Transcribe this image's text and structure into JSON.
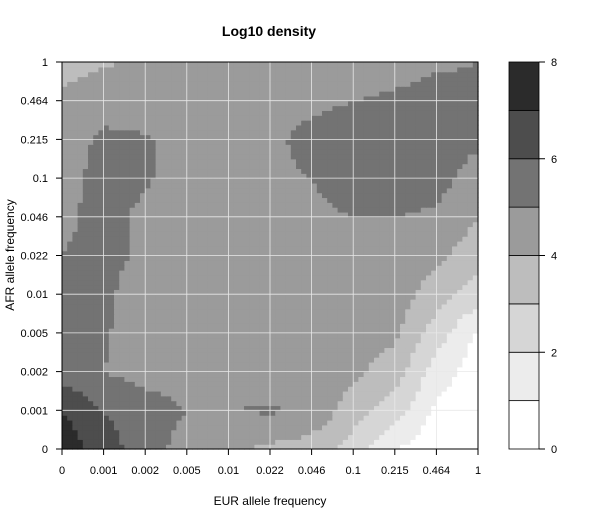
{
  "chart_data": {
    "type": "heatmap",
    "title": "Log10 density",
    "xlabel": "EUR allele frequency",
    "ylabel": "AFR allele frequency",
    "x_ticks": [
      "0",
      "0.001",
      "0.002",
      "0.005",
      "0.01",
      "0.022",
      "0.046",
      "0.1",
      "0.215",
      "0.464",
      "1"
    ],
    "y_ticks": [
      "0",
      "0.001",
      "0.002",
      "0.005",
      "0.01",
      "0.022",
      "0.046",
      "0.1",
      "0.215",
      "0.464",
      "1"
    ],
    "grid": true,
    "legend": {
      "placement": "right",
      "range": [
        0,
        8
      ],
      "tick_labels": [
        "0",
        "2",
        "4",
        "6",
        "8"
      ],
      "levels": [
        {
          "from": 0,
          "to": 1,
          "color": "#ffffff"
        },
        {
          "from": 1,
          "to": 2,
          "color": "#ececec"
        },
        {
          "from": 2,
          "to": 3,
          "color": "#d6d6d6"
        },
        {
          "from": 3,
          "to": 4,
          "color": "#bdbdbd"
        },
        {
          "from": 4,
          "to": 5,
          "color": "#9b9b9b"
        },
        {
          "from": 5,
          "to": 6,
          "color": "#737373"
        },
        {
          "from": 6,
          "to": 7,
          "color": "#4d4d4d"
        },
        {
          "from": 7,
          "to": 8,
          "color": "#2b2b2b"
        }
      ]
    },
    "grid_values": [
      [
        7.8,
        6.4,
        5.6,
        4.5,
        4.2,
        3.8,
        3.5,
        2.5,
        1.0,
        0.3,
        0.1
      ],
      [
        7.0,
        6.0,
        5.5,
        5.0,
        5.0,
        5.1,
        4.8,
        3.5,
        2.5,
        0.8,
        0.3
      ],
      [
        5.5,
        5.0,
        4.6,
        4.5,
        4.5,
        4.4,
        4.4,
        4.2,
        3.5,
        1.5,
        0.5
      ],
      [
        5.3,
        5.1,
        4.5,
        4.3,
        4.3,
        4.4,
        4.4,
        4.4,
        4.2,
        2.5,
        0.8
      ],
      [
        5.3,
        5.2,
        4.5,
        4.3,
        4.4,
        4.4,
        4.5,
        4.5,
        4.5,
        3.5,
        2.5
      ],
      [
        5.0,
        5.3,
        4.8,
        4.5,
        4.5,
        4.5,
        4.5,
        4.6,
        4.7,
        4.2,
        3.5
      ],
      [
        4.8,
        5.3,
        4.8,
        4.5,
        4.5,
        4.6,
        4.8,
        5.0,
        5.0,
        4.8,
        4.0
      ],
      [
        4.7,
        5.3,
        5.1,
        4.6,
        4.6,
        4.8,
        5.0,
        5.5,
        5.7,
        5.4,
        4.5
      ],
      [
        4.5,
        5.2,
        5.1,
        4.6,
        4.6,
        4.8,
        5.3,
        5.6,
        5.8,
        5.5,
        5.2
      ],
      [
        4.3,
        4.6,
        4.5,
        4.4,
        4.4,
        4.5,
        4.8,
        5.0,
        5.2,
        5.5,
        5.3
      ],
      [
        3.5,
        3.9,
        4.1,
        4.2,
        4.2,
        4.2,
        4.3,
        4.4,
        4.5,
        4.8,
        5.0
      ]
    ]
  }
}
